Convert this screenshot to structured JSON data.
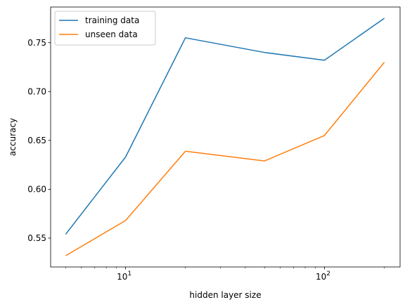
{
  "chart_data": {
    "type": "line",
    "xlabel": "hidden layer size",
    "ylabel": "accuracy",
    "x_scale": "log",
    "xlim": [
      4.2,
      240
    ],
    "ylim": [
      0.5205,
      0.7865
    ],
    "x_ticks": [
      {
        "value": 10,
        "base": "10",
        "exp": "1"
      },
      {
        "value": 100,
        "base": "10",
        "exp": "2"
      }
    ],
    "y_ticks": [
      {
        "value": 0.55,
        "label": "0.55"
      },
      {
        "value": 0.6,
        "label": "0.60"
      },
      {
        "value": 0.65,
        "label": "0.65"
      },
      {
        "value": 0.7,
        "label": "0.70"
      },
      {
        "value": 0.75,
        "label": "0.75"
      }
    ],
    "x": [
      5,
      10,
      20,
      50,
      100,
      200
    ],
    "series": [
      {
        "name": "training data",
        "color": "#1f77b4",
        "values": [
          0.554,
          0.633,
          0.755,
          0.74,
          0.732,
          0.775
        ]
      },
      {
        "name": "unseen data",
        "color": "#ff7f0e",
        "values": [
          0.532,
          0.568,
          0.639,
          0.629,
          0.655,
          0.73
        ]
      }
    ],
    "legend_position": "top-left",
    "grid": false
  }
}
